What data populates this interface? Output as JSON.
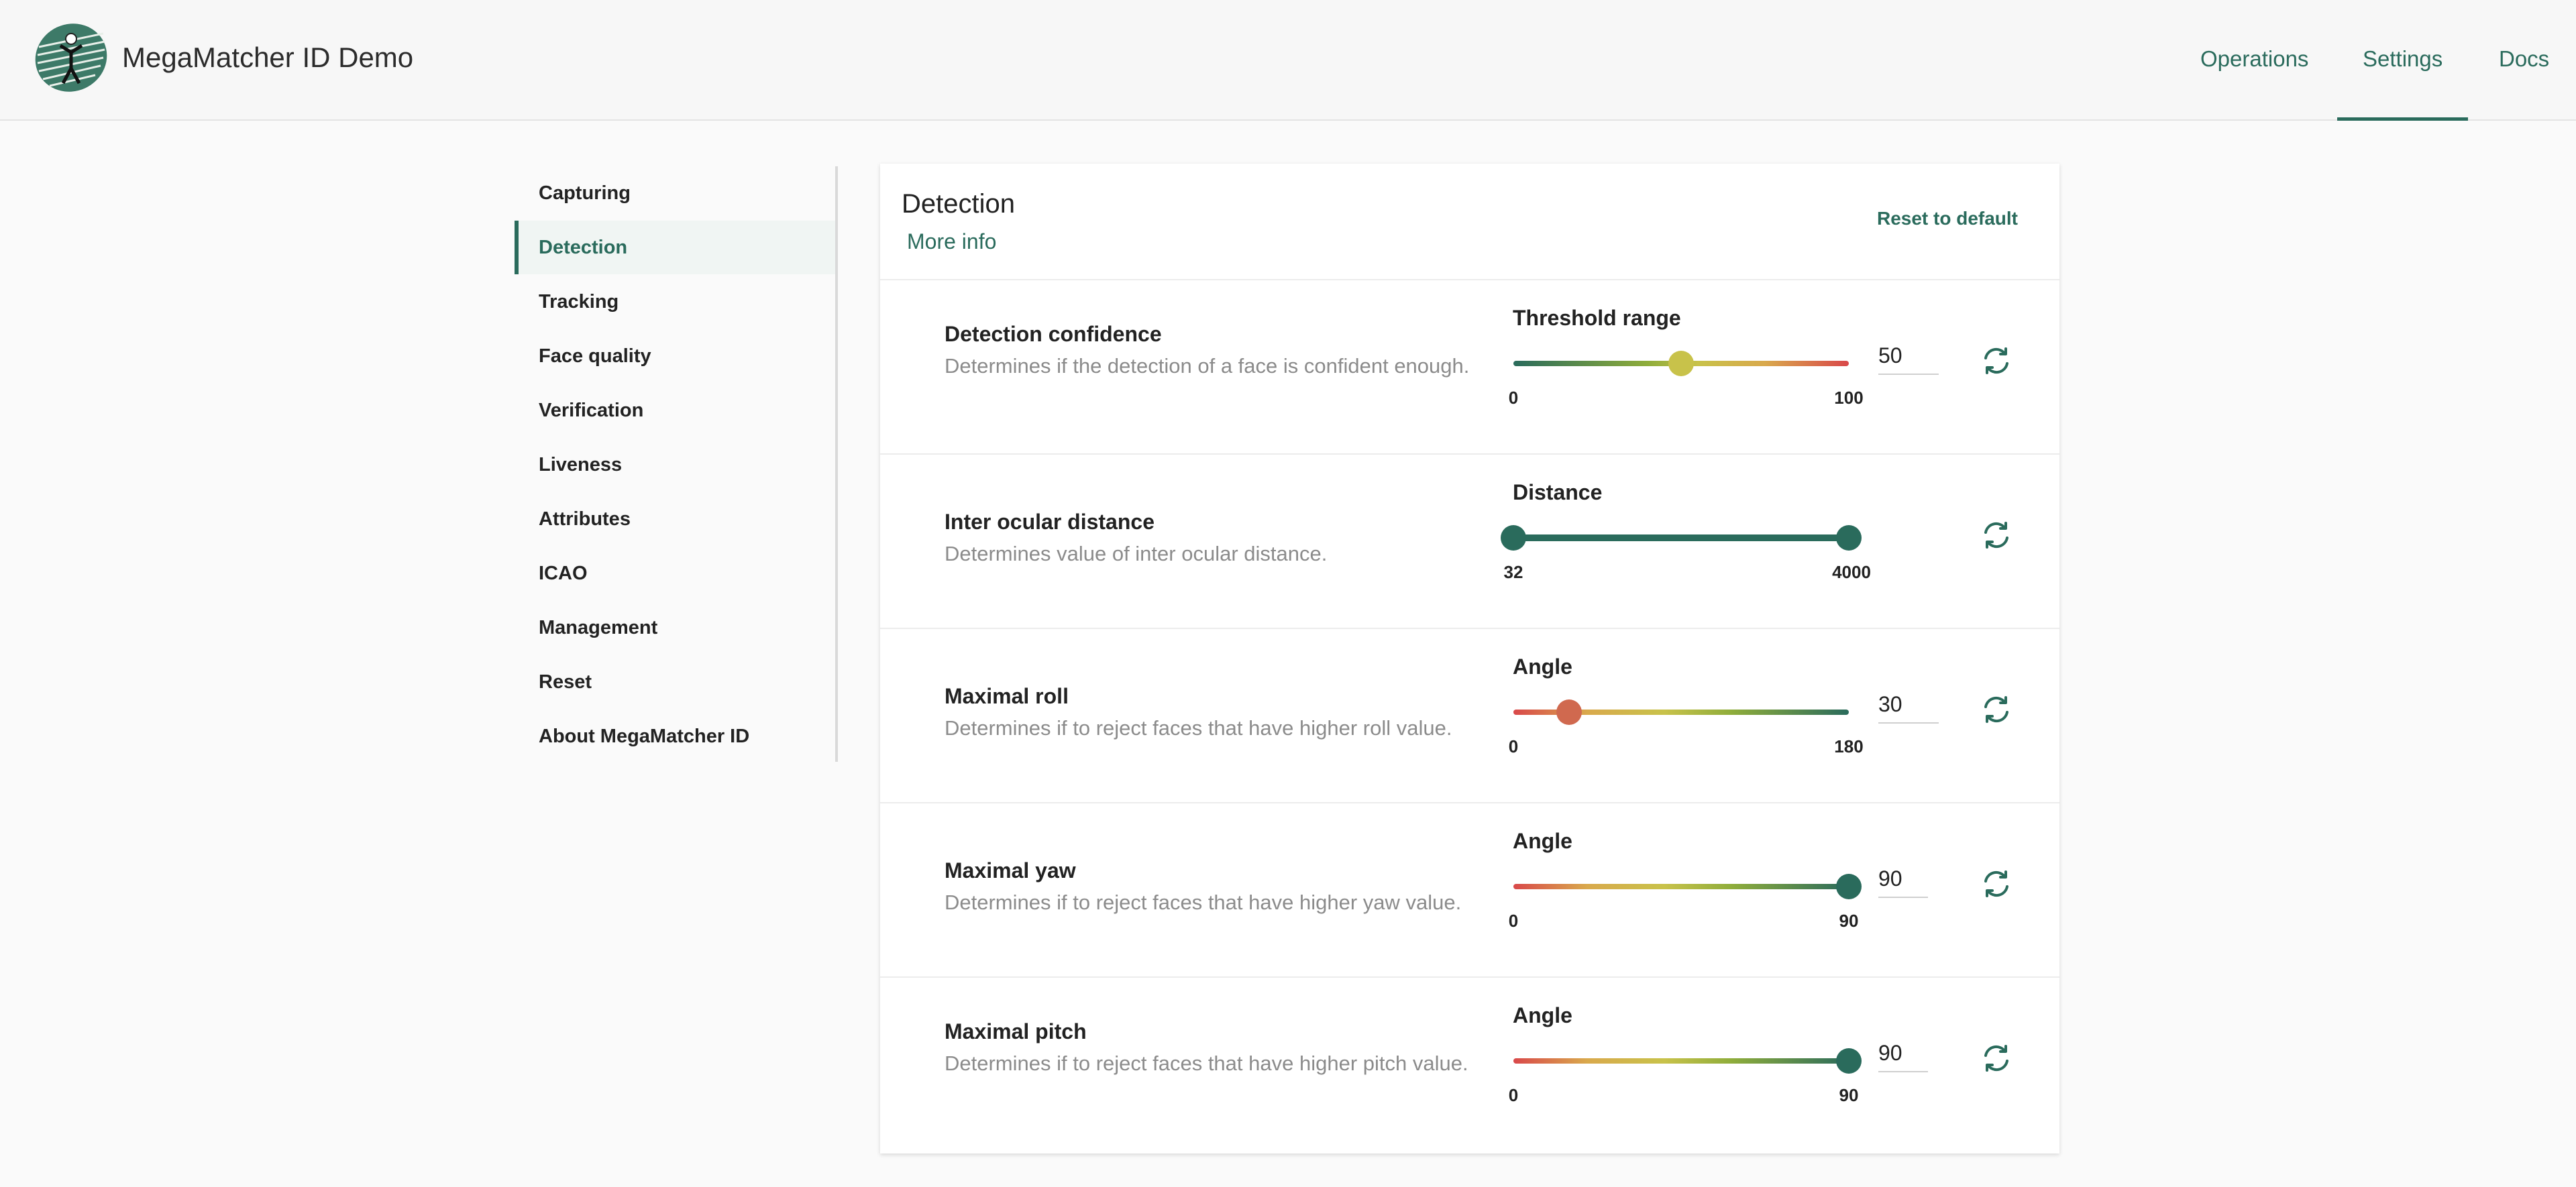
{
  "header": {
    "app_title": "MegaMatcher ID Demo",
    "nav": [
      {
        "label": "Operations",
        "active": false
      },
      {
        "label": "Settings",
        "active": true
      },
      {
        "label": "Docs",
        "active": false
      }
    ],
    "accent_color": "#2a6b5c"
  },
  "sidebar": {
    "items": [
      {
        "label": "Capturing"
      },
      {
        "label": "Detection",
        "active": true
      },
      {
        "label": "Tracking"
      },
      {
        "label": "Face quality"
      },
      {
        "label": "Verification"
      },
      {
        "label": "Liveness"
      },
      {
        "label": "Attributes"
      },
      {
        "label": "ICAO"
      },
      {
        "label": "Management"
      },
      {
        "label": "Reset"
      },
      {
        "label": "About MegaMatcher ID"
      }
    ]
  },
  "card": {
    "title": "Detection",
    "more_info": "More info",
    "reset_default": "Reset to default",
    "settings": [
      {
        "title": "Detection confidence",
        "description": "Determines if the detection of a face is confident enough.",
        "slider_label": "Threshold range",
        "min": "0",
        "max": "100",
        "value": "50",
        "value_fraction": 0.5,
        "thumb_color": "#c8c24a"
      },
      {
        "title": "Inter ocular distance",
        "description": "Determines value of inter ocular distance.",
        "slider_label": "Distance",
        "min": "32",
        "max": "4000",
        "range_low_fraction": 0,
        "range_high_fraction": 1,
        "thumb_color": "#2a6b5c"
      },
      {
        "title": "Maximal roll",
        "description": "Determines if to reject faces that have higher roll value.",
        "slider_label": "Angle",
        "min": "0",
        "max": "180",
        "value": "30",
        "value_fraction": 0.1667,
        "thumb_color": "#d0694f"
      },
      {
        "title": "Maximal yaw",
        "description": "Determines if to reject faces that have higher yaw value.",
        "slider_label": "Angle",
        "min": "0",
        "max": "90",
        "value": "90",
        "value_fraction": 1,
        "thumb_color": "#2a6b5c"
      },
      {
        "title": "Maximal pitch",
        "description": "Determines if to reject faces that have higher pitch value.",
        "slider_label": "Angle",
        "min": "0",
        "max": "90",
        "value": "90",
        "value_fraction": 1,
        "thumb_color": "#2a6b5c"
      }
    ]
  }
}
